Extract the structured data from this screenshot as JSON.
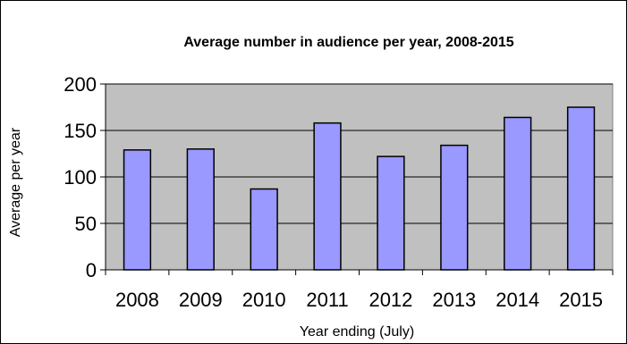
{
  "chart_data": {
    "type": "bar",
    "title": "Average number in audience per year, 2008-2015",
    "xlabel": "Year ending (July)",
    "ylabel": "Average per year",
    "categories": [
      "2008",
      "2009",
      "2010",
      "2011",
      "2012",
      "2013",
      "2014",
      "2015"
    ],
    "values": [
      129,
      130,
      87,
      158,
      122,
      134,
      164,
      175
    ],
    "ylim": [
      0,
      200
    ],
    "yticks": [
      "0",
      "50",
      "100",
      "150",
      "200"
    ],
    "grid": true,
    "legend": "none",
    "colors": {
      "bar_fill": "#9999ff",
      "bar_stroke": "#000000",
      "plot_background": "#c0c0c0",
      "gridline": "#000000"
    }
  }
}
